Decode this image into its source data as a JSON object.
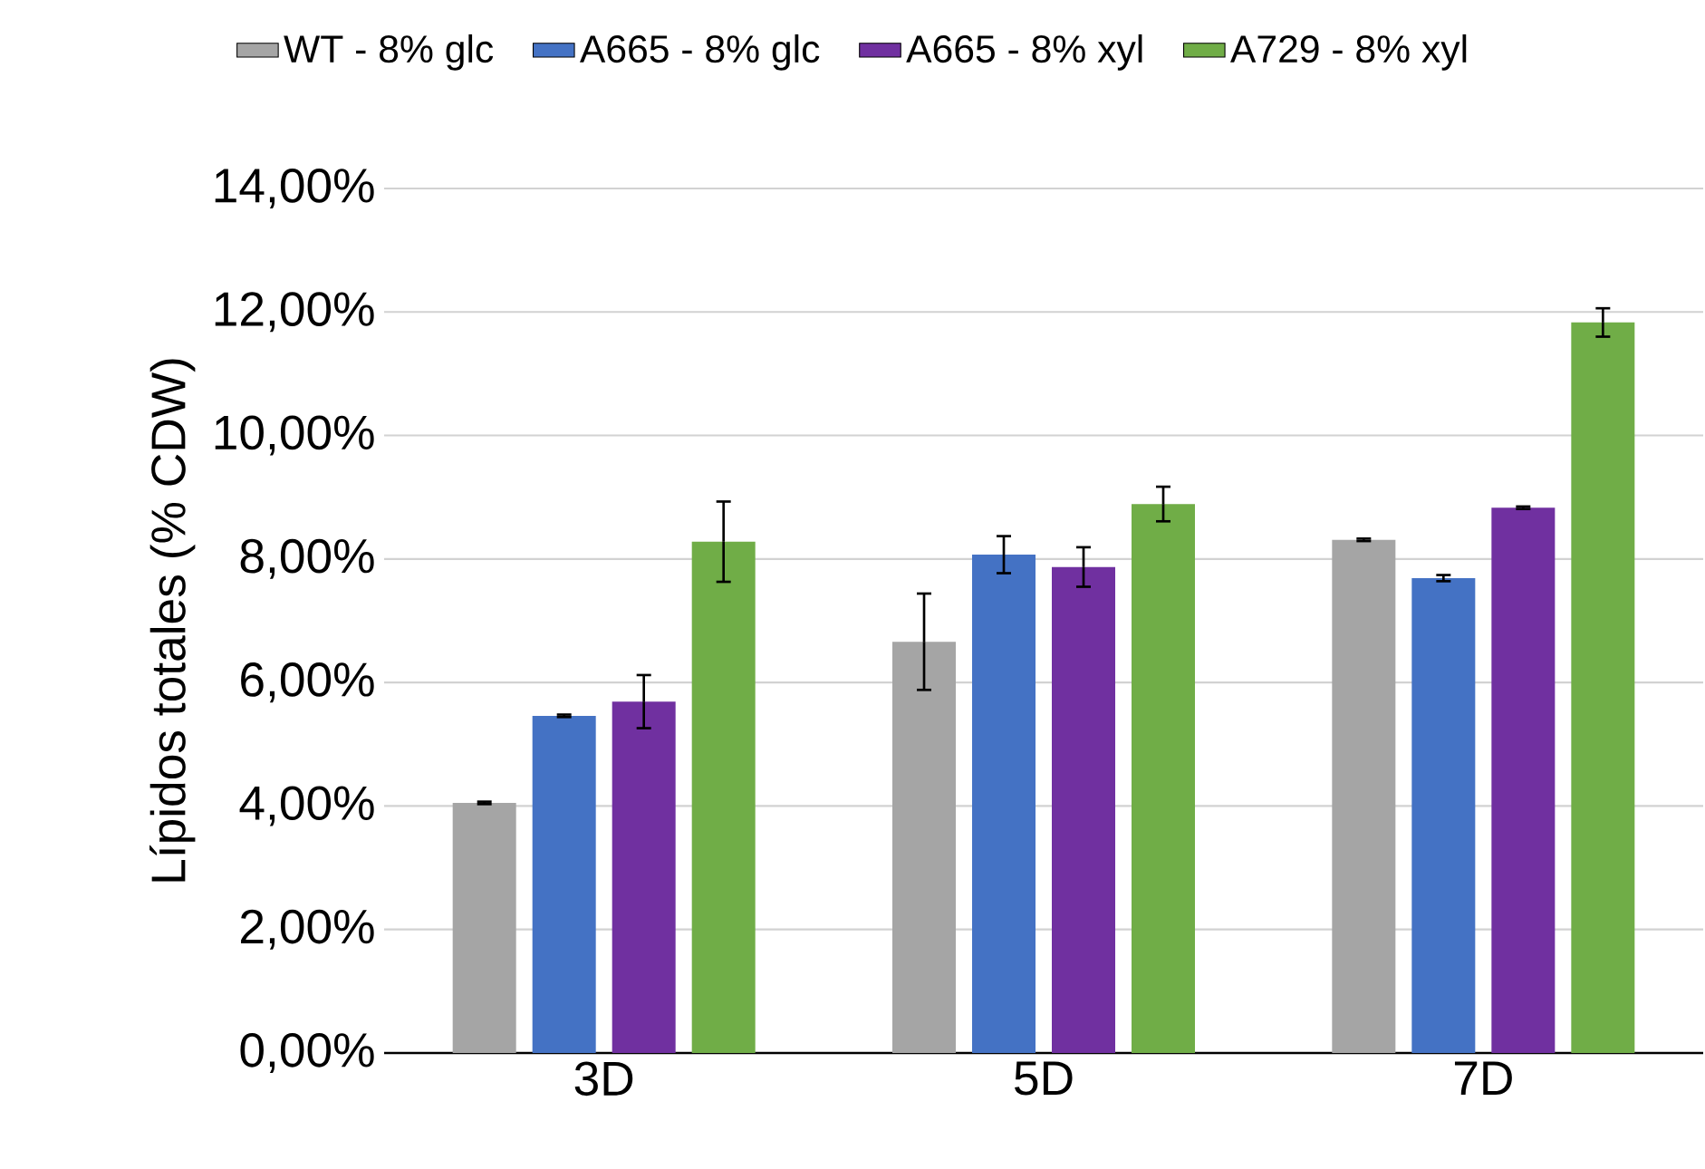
{
  "chart_data": {
    "type": "bar",
    "ylabel": "Lípidos totales (% CDW)",
    "categories": [
      "3D",
      "5D",
      "7D"
    ],
    "series": [
      {
        "name": "WT - 8% glc",
        "color": "#a5a5a5",
        "values": [
          4.05,
          6.66,
          8.31
        ],
        "errors": [
          0.02,
          0.78,
          0.02
        ]
      },
      {
        "name": "A665 - 8% glc",
        "color": "#4472c4",
        "values": [
          5.46,
          8.07,
          7.69
        ],
        "errors": [
          0.02,
          0.3,
          0.05
        ]
      },
      {
        "name": "A665 - 8% xyl",
        "color": "#7030a0",
        "values": [
          5.69,
          7.87,
          8.83
        ],
        "errors": [
          0.43,
          0.32,
          0.02
        ]
      },
      {
        "name": "A729 - 8% xyl",
        "color": "#70ad47",
        "values": [
          8.28,
          8.89,
          11.83
        ],
        "errors": [
          0.65,
          0.28,
          0.23
        ]
      }
    ],
    "ylim": [
      0,
      14
    ],
    "yticks": [
      {
        "value": 0,
        "label": "0,00%"
      },
      {
        "value": 2,
        "label": "2,00%"
      },
      {
        "value": 4,
        "label": "4,00%"
      },
      {
        "value": 6,
        "label": "6,00%"
      },
      {
        "value": 8,
        "label": "8,00%"
      },
      {
        "value": 10,
        "label": "10,00%"
      },
      {
        "value": 12,
        "label": "12,00%"
      },
      {
        "value": 14,
        "label": "14,00%"
      }
    ],
    "grid": "y",
    "legend": "top"
  }
}
